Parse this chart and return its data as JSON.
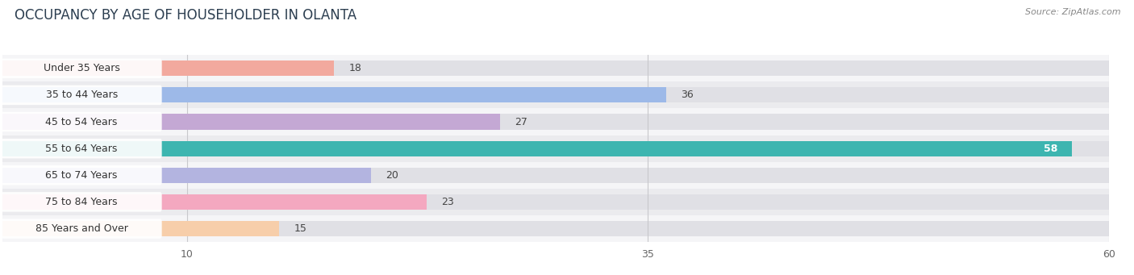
{
  "title": "OCCUPANCY BY AGE OF HOUSEHOLDER IN OLANTA",
  "source": "Source: ZipAtlas.com",
  "categories": [
    "Under 35 Years",
    "35 to 44 Years",
    "45 to 54 Years",
    "55 to 64 Years",
    "65 to 74 Years",
    "75 to 84 Years",
    "85 Years and Over"
  ],
  "values": [
    18,
    36,
    27,
    58,
    20,
    23,
    15
  ],
  "bar_colors": [
    "#f2a99e",
    "#9db9e8",
    "#c4a8d4",
    "#3db5b0",
    "#b3b4e0",
    "#f4a8c0",
    "#f7ceaa"
  ],
  "row_bg_even": "#f5f5f7",
  "row_bg_odd": "#ebebee",
  "track_color": "#e0e0e5",
  "xlim": [
    0,
    60
  ],
  "xticks": [
    10,
    35,
    60
  ],
  "title_fontsize": 12,
  "label_fontsize": 9,
  "value_fontsize": 9,
  "bar_height": 0.58,
  "background_color": "#ffffff",
  "value_inside_idx": 3
}
